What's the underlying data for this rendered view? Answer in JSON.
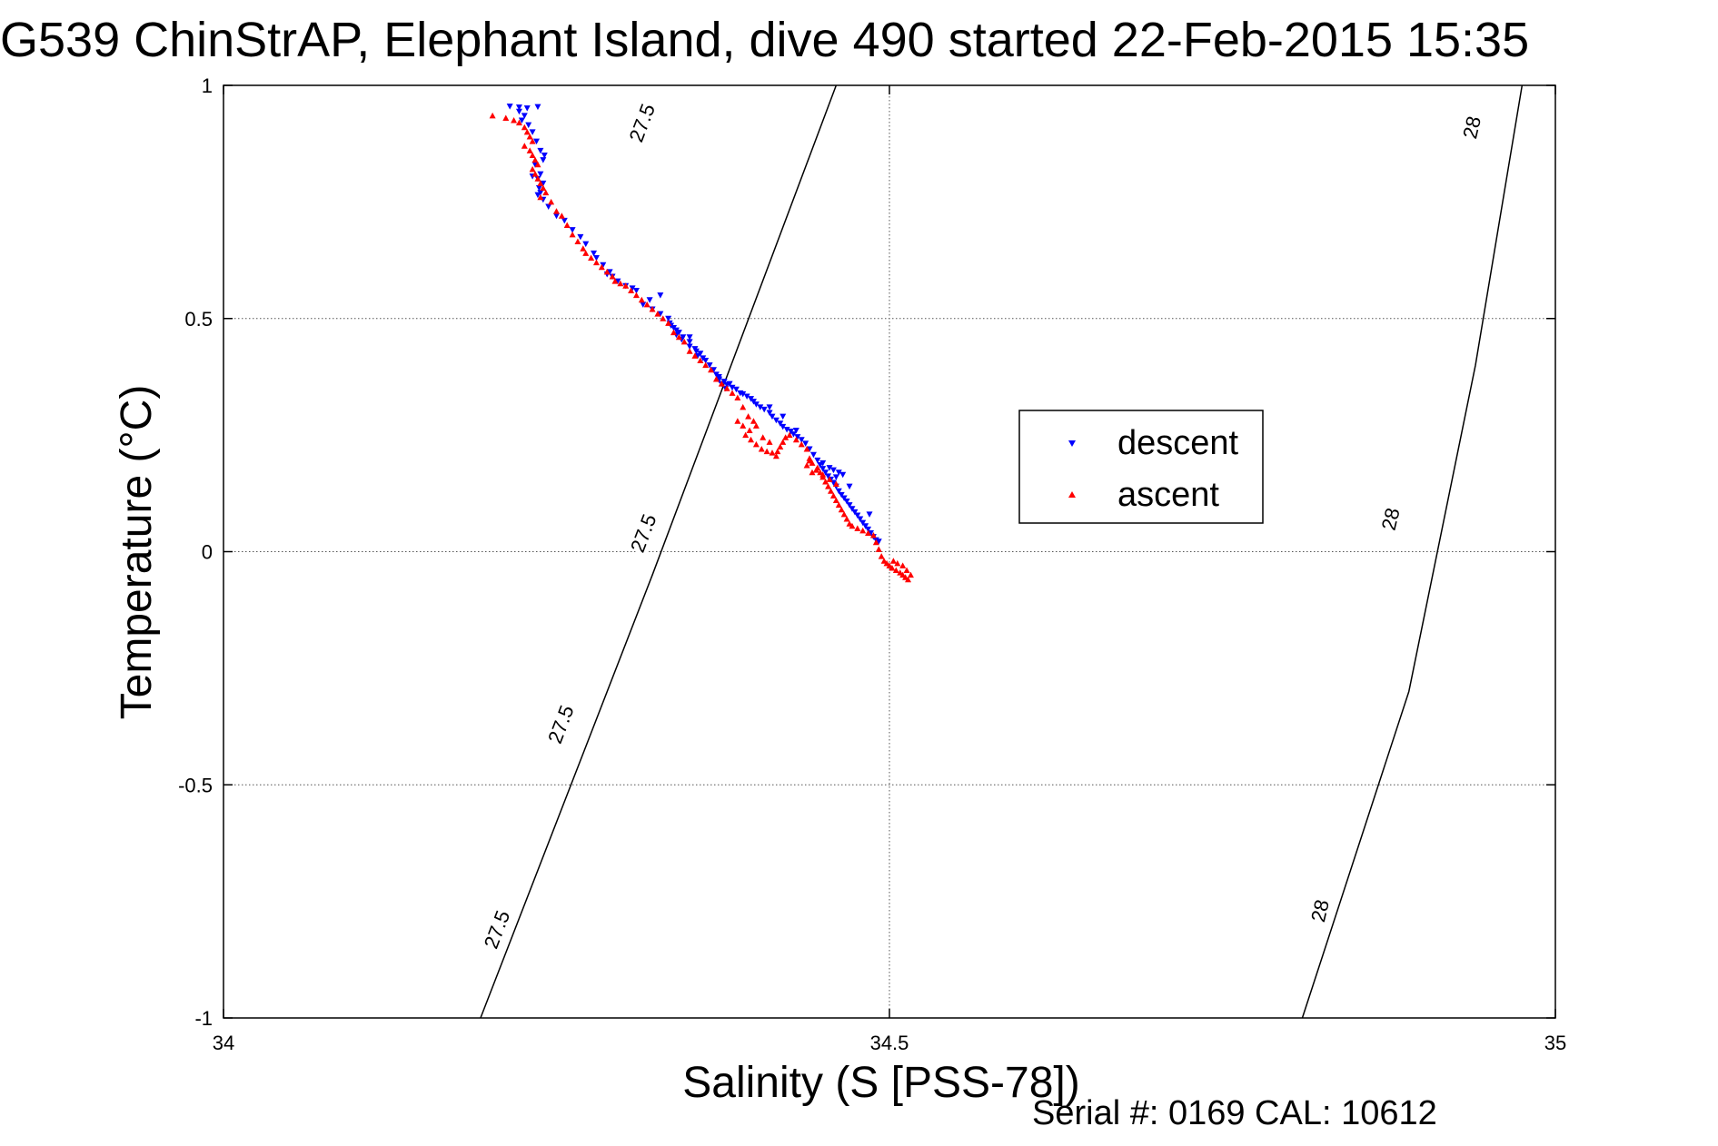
{
  "chart_data": {
    "type": "scatter",
    "title": "G539 ChinStrAP, Elephant Island, dive 490 started 22-Feb-2015 15:35",
    "xlabel": "Salinity (S [PSS-78])",
    "ylabel": "Temperature (°C)",
    "footer": "Serial #: 0169 CAL: 10612",
    "xlim": [
      34,
      35
    ],
    "ylim": [
      -1,
      1
    ],
    "xticks": [
      34,
      34.5,
      35
    ],
    "xtick_labels": [
      "34",
      "34.5",
      "35"
    ],
    "yticks": [
      -1,
      -0.5,
      0,
      0.5,
      1
    ],
    "ytick_labels": [
      "-1",
      "-0.5",
      "0",
      "0.5",
      "1"
    ],
    "grid": true,
    "legend_position": "right",
    "isopycnals": [
      {
        "label": "27.5",
        "points": [
          [
            34.193,
            -1.0
          ],
          [
            34.322,
            -0.05
          ],
          [
            34.46,
            1.0
          ]
        ],
        "label_positions": [
          [
            34.205,
            -0.81
          ],
          [
            34.253,
            -0.37
          ],
          [
            34.315,
            0.04
          ],
          [
            34.314,
            0.92
          ]
        ]
      },
      {
        "label": "28",
        "points": [
          [
            34.81,
            -1.0
          ],
          [
            34.89,
            -0.3
          ],
          [
            34.94,
            0.4
          ],
          [
            34.975,
            1.0
          ]
        ],
        "label_positions": [
          [
            34.823,
            -0.77
          ],
          [
            34.876,
            0.07
          ],
          [
            34.937,
            0.91
          ]
        ]
      }
    ],
    "series": [
      {
        "name": "descent",
        "color": "#0000ff",
        "marker": "triangle-down",
        "points": [
          [
            34.215,
            0.955
          ],
          [
            34.222,
            0.953
          ],
          [
            34.228,
            0.951
          ],
          [
            34.236,
            0.954
          ],
          [
            34.222,
            0.944
          ],
          [
            34.226,
            0.935
          ],
          [
            34.224,
            0.925
          ],
          [
            34.229,
            0.915
          ],
          [
            34.232,
            0.9
          ],
          [
            34.235,
            0.88
          ],
          [
            34.238,
            0.86
          ],
          [
            34.241,
            0.85
          ],
          [
            34.24,
            0.84
          ],
          [
            34.234,
            0.83
          ],
          [
            34.238,
            0.81
          ],
          [
            34.232,
            0.805
          ],
          [
            34.236,
            0.8
          ],
          [
            34.24,
            0.79
          ],
          [
            34.237,
            0.78
          ],
          [
            34.238,
            0.77
          ],
          [
            34.236,
            0.765
          ],
          [
            34.24,
            0.755
          ],
          [
            34.244,
            0.74
          ],
          [
            34.25,
            0.72
          ],
          [
            34.256,
            0.71
          ],
          [
            34.262,
            0.69
          ],
          [
            34.268,
            0.675
          ],
          [
            34.272,
            0.66
          ],
          [
            34.278,
            0.64
          ],
          [
            34.28,
            0.63
          ],
          [
            34.285,
            0.615
          ],
          [
            34.29,
            0.6
          ],
          [
            34.288,
            0.595
          ],
          [
            34.292,
            0.59
          ],
          [
            34.296,
            0.58
          ],
          [
            34.302,
            0.57
          ],
          [
            34.307,
            0.565
          ],
          [
            34.31,
            0.56
          ],
          [
            34.32,
            0.54
          ],
          [
            34.328,
            0.51
          ],
          [
            34.335,
            0.49
          ],
          [
            34.338,
            0.48
          ],
          [
            34.342,
            0.47
          ],
          [
            34.344,
            0.455
          ],
          [
            34.35,
            0.44
          ],
          [
            34.356,
            0.42
          ],
          [
            34.362,
            0.41
          ],
          [
            34.368,
            0.39
          ],
          [
            34.372,
            0.375
          ],
          [
            34.328,
            0.55
          ],
          [
            34.38,
            0.36
          ],
          [
            34.34,
            0.465
          ],
          [
            34.35,
            0.45
          ],
          [
            34.334,
            0.5
          ],
          [
            34.322,
            0.52
          ],
          [
            34.35,
            0.46
          ],
          [
            34.315,
            0.53
          ],
          [
            34.336,
            0.485
          ],
          [
            34.34,
            0.475
          ],
          [
            34.345,
            0.46
          ],
          [
            34.354,
            0.435
          ],
          [
            34.355,
            0.43
          ],
          [
            34.358,
            0.425
          ],
          [
            34.36,
            0.415
          ],
          [
            34.365,
            0.4
          ],
          [
            34.37,
            0.38
          ],
          [
            34.372,
            0.37
          ],
          [
            34.374,
            0.36
          ],
          [
            34.377,
            0.35
          ],
          [
            34.372,
            0.368
          ],
          [
            34.376,
            0.365
          ],
          [
            34.378,
            0.358
          ],
          [
            34.382,
            0.352
          ],
          [
            34.385,
            0.348
          ],
          [
            34.388,
            0.34
          ],
          [
            34.39,
            0.338
          ],
          [
            34.393,
            0.333
          ],
          [
            34.396,
            0.328
          ],
          [
            34.398,
            0.322
          ],
          [
            34.4,
            0.316
          ],
          [
            34.403,
            0.31
          ],
          [
            34.406,
            0.305
          ],
          [
            34.41,
            0.298
          ],
          [
            34.412,
            0.29
          ],
          [
            34.415,
            0.282
          ],
          [
            34.418,
            0.275
          ],
          [
            34.42,
            0.268
          ],
          [
            34.423,
            0.262
          ],
          [
            34.426,
            0.258
          ],
          [
            34.428,
            0.252
          ],
          [
            34.431,
            0.246
          ],
          [
            34.434,
            0.24
          ],
          [
            34.437,
            0.232
          ],
          [
            34.44,
            0.22
          ],
          [
            34.443,
            0.208
          ],
          [
            34.446,
            0.196
          ],
          [
            34.448,
            0.186
          ],
          [
            34.45,
            0.178
          ],
          [
            34.452,
            0.17
          ],
          [
            34.454,
            0.162
          ],
          [
            34.456,
            0.155
          ],
          [
            34.458,
            0.148
          ],
          [
            34.46,
            0.14
          ],
          [
            34.462,
            0.13
          ],
          [
            34.464,
            0.122
          ],
          [
            34.466,
            0.115
          ],
          [
            34.468,
            0.108
          ],
          [
            34.47,
            0.1
          ],
          [
            34.472,
            0.092
          ],
          [
            34.474,
            0.085
          ],
          [
            34.476,
            0.078
          ],
          [
            34.478,
            0.07
          ],
          [
            34.48,
            0.062
          ],
          [
            34.482,
            0.055
          ],
          [
            34.484,
            0.048
          ],
          [
            34.486,
            0.04
          ],
          [
            34.488,
            0.032
          ],
          [
            34.49,
            0.025
          ],
          [
            34.492,
            0.022
          ],
          [
            34.455,
            0.18
          ],
          [
            34.458,
            0.175
          ],
          [
            34.462,
            0.17
          ],
          [
            34.465,
            0.165
          ],
          [
            34.46,
            0.16
          ],
          [
            34.41,
            0.31
          ],
          [
            34.43,
            0.26
          ],
          [
            34.45,
            0.19
          ],
          [
            34.47,
            0.14
          ],
          [
            34.485,
            0.08
          ],
          [
            34.42,
            0.29
          ]
        ]
      },
      {
        "name": "ascent",
        "color": "#ff0000",
        "marker": "triangle-up",
        "points": [
          [
            34.202,
            0.935
          ],
          [
            34.212,
            0.93
          ],
          [
            34.218,
            0.925
          ],
          [
            34.222,
            0.92
          ],
          [
            34.226,
            0.91
          ],
          [
            34.228,
            0.9
          ],
          [
            34.23,
            0.89
          ],
          [
            34.232,
            0.88
          ],
          [
            34.226,
            0.87
          ],
          [
            34.23,
            0.86
          ],
          [
            34.232,
            0.85
          ],
          [
            34.234,
            0.84
          ],
          [
            34.236,
            0.83
          ],
          [
            34.232,
            0.82
          ],
          [
            34.234,
            0.81
          ],
          [
            34.236,
            0.8
          ],
          [
            34.238,
            0.79
          ],
          [
            34.24,
            0.78
          ],
          [
            34.242,
            0.77
          ],
          [
            34.238,
            0.76
          ],
          [
            34.246,
            0.75
          ],
          [
            34.25,
            0.73
          ],
          [
            34.254,
            0.72
          ],
          [
            34.258,
            0.7
          ],
          [
            34.262,
            0.68
          ],
          [
            34.266,
            0.665
          ],
          [
            34.27,
            0.65
          ],
          [
            34.272,
            0.64
          ],
          [
            34.276,
            0.63
          ],
          [
            34.28,
            0.62
          ],
          [
            34.284,
            0.61
          ],
          [
            34.288,
            0.6
          ],
          [
            34.292,
            0.59
          ],
          [
            34.294,
            0.58
          ],
          [
            34.298,
            0.575
          ],
          [
            34.302,
            0.57
          ],
          [
            34.306,
            0.56
          ],
          [
            34.31,
            0.55
          ],
          [
            34.314,
            0.54
          ],
          [
            34.318,
            0.53
          ],
          [
            34.322,
            0.52
          ],
          [
            34.326,
            0.51
          ],
          [
            34.33,
            0.5
          ],
          [
            34.334,
            0.49
          ],
          [
            34.338,
            0.47
          ],
          [
            34.342,
            0.46
          ],
          [
            34.346,
            0.45
          ],
          [
            34.35,
            0.43
          ],
          [
            34.354,
            0.42
          ],
          [
            34.358,
            0.41
          ],
          [
            34.362,
            0.4
          ],
          [
            34.366,
            0.39
          ],
          [
            34.37,
            0.37
          ],
          [
            34.374,
            0.36
          ],
          [
            34.378,
            0.35
          ],
          [
            34.382,
            0.34
          ],
          [
            34.386,
            0.33
          ],
          [
            34.39,
            0.31
          ],
          [
            34.394,
            0.29
          ],
          [
            34.398,
            0.28
          ],
          [
            34.4,
            0.27
          ],
          [
            34.395,
            0.26
          ],
          [
            34.392,
            0.25
          ],
          [
            34.396,
            0.24
          ],
          [
            34.4,
            0.23
          ],
          [
            34.404,
            0.22
          ],
          [
            34.408,
            0.215
          ],
          [
            34.412,
            0.212
          ],
          [
            34.416,
            0.215
          ],
          [
            34.418,
            0.225
          ],
          [
            34.42,
            0.235
          ],
          [
            34.422,
            0.245
          ],
          [
            34.425,
            0.25
          ],
          [
            34.43,
            0.24
          ],
          [
            34.434,
            0.23
          ],
          [
            34.438,
            0.22
          ],
          [
            34.44,
            0.2
          ],
          [
            34.442,
            0.19
          ],
          [
            34.446,
            0.18
          ],
          [
            34.448,
            0.17
          ],
          [
            34.45,
            0.16
          ],
          [
            34.452,
            0.15
          ],
          [
            34.454,
            0.14
          ],
          [
            34.456,
            0.13
          ],
          [
            34.458,
            0.12
          ],
          [
            34.46,
            0.11
          ],
          [
            34.462,
            0.1
          ],
          [
            34.464,
            0.09
          ],
          [
            34.466,
            0.08
          ],
          [
            34.468,
            0.07
          ],
          [
            34.47,
            0.06
          ],
          [
            34.472,
            0.055
          ],
          [
            34.476,
            0.05
          ],
          [
            34.48,
            0.045
          ],
          [
            34.484,
            0.04
          ],
          [
            34.488,
            0.035
          ],
          [
            34.49,
            0.02
          ],
          [
            34.492,
            0.005
          ],
          [
            34.494,
            -0.01
          ],
          [
            34.496,
            -0.02
          ],
          [
            34.498,
            -0.025
          ],
          [
            34.5,
            -0.03
          ],
          [
            34.502,
            -0.035
          ],
          [
            34.505,
            -0.04
          ],
          [
            34.508,
            -0.045
          ],
          [
            34.51,
            -0.05
          ],
          [
            34.512,
            -0.055
          ],
          [
            34.514,
            -0.06
          ],
          [
            34.516,
            -0.05
          ],
          [
            34.513,
            -0.04
          ],
          [
            34.51,
            -0.03
          ],
          [
            34.506,
            -0.025
          ],
          [
            34.503,
            -0.02
          ],
          [
            34.44,
            0.195
          ],
          [
            34.445,
            0.175
          ],
          [
            34.45,
            0.165
          ],
          [
            34.455,
            0.155
          ],
          [
            34.46,
            0.145
          ],
          [
            34.438,
            0.185
          ],
          [
            34.442,
            0.17
          ],
          [
            34.41,
            0.235
          ],
          [
            34.405,
            0.245
          ],
          [
            34.415,
            0.205
          ],
          [
            34.39,
            0.27
          ],
          [
            34.386,
            0.28
          ]
        ]
      }
    ]
  }
}
